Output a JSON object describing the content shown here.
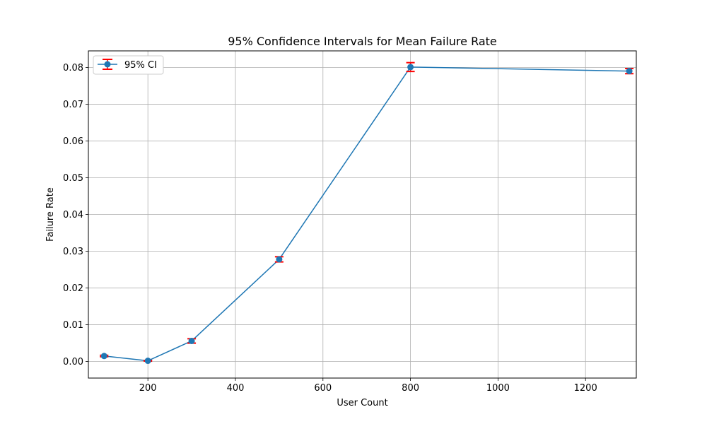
{
  "chart_data": {
    "type": "line",
    "title": "95% Confidence Intervals for Mean Failure Rate",
    "xlabel": "User Count",
    "ylabel": "Failure Rate",
    "xlim": [
      64,
      1316
    ],
    "ylim": [
      -0.0045,
      0.0845
    ],
    "xticks": [
      200,
      400,
      600,
      800,
      1000,
      1200
    ],
    "xtick_labels": [
      "200",
      "400",
      "600",
      "800",
      "1000",
      "1200"
    ],
    "yticks": [
      0.0,
      0.01,
      0.02,
      0.03,
      0.04,
      0.05,
      0.06,
      0.07,
      0.08
    ],
    "ytick_labels": [
      "0.00",
      "0.01",
      "0.02",
      "0.03",
      "0.04",
      "0.05",
      "0.06",
      "0.07",
      "0.08"
    ],
    "grid": true,
    "legend_position": "upper-left",
    "series": [
      {
        "name": "95% CI",
        "x": [
          100,
          200,
          300,
          500,
          800,
          1300
        ],
        "y": [
          0.0015,
          0.0002,
          0.0056,
          0.0278,
          0.0801,
          0.079
        ],
        "ci_low": [
          0.0013,
          0.0001,
          0.005,
          0.0271,
          0.0789,
          0.0783
        ],
        "ci_high": [
          0.0017,
          0.0003,
          0.0062,
          0.0285,
          0.0813,
          0.0797
        ],
        "line_color": "#1f77b4",
        "errorbar_color": "#ff0000"
      }
    ]
  }
}
